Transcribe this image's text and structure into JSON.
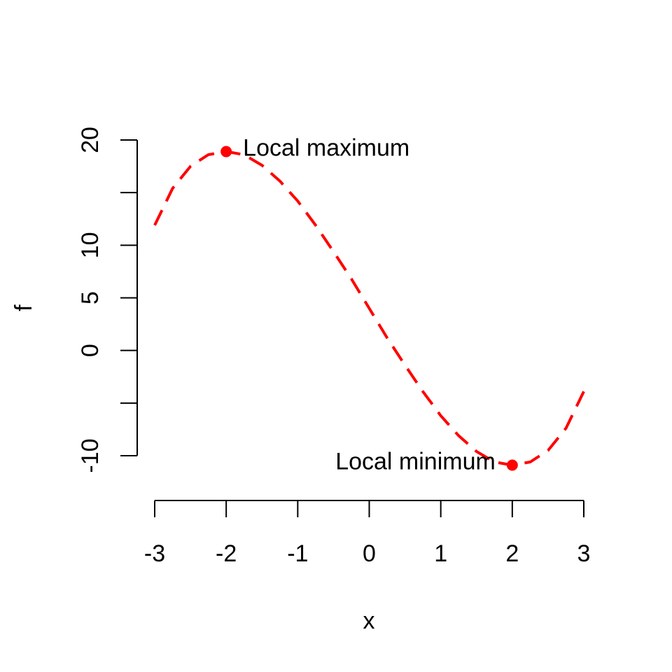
{
  "chart_data": {
    "type": "line",
    "title": "",
    "xlabel": "x",
    "ylabel": "f",
    "xlim": [
      -3,
      3
    ],
    "ylim": [
      -10,
      20
    ],
    "x_ticks": [
      -3,
      -2,
      -1,
      0,
      1,
      2,
      3
    ],
    "x_tick_labels": [
      "-3",
      "-2",
      "-1",
      "0",
      "1",
      "2",
      "3"
    ],
    "y_ticks": [
      -10,
      -5,
      0,
      5,
      10,
      15,
      20
    ],
    "y_tick_labels": [
      "-10",
      "",
      "0",
      "5",
      "10",
      "",
      "20"
    ],
    "grid": false,
    "series": [
      {
        "color": "#ff0000",
        "line_style": "dashed",
        "x": [
          -3.0,
          -2.75,
          -2.5,
          -2.25,
          -2.0,
          -1.75,
          -1.5,
          -1.25,
          -1.0,
          -0.75,
          -0.5,
          -0.25,
          0.0,
          0.25,
          0.5,
          0.75,
          1.0,
          1.25,
          1.5,
          1.75,
          2.0,
          2.25,
          2.5,
          2.75,
          3.0
        ],
        "y": [
          11.9,
          15.4,
          17.5,
          18.6,
          18.9,
          18.6,
          17.6,
          16.1,
          14.2,
          11.9,
          9.4,
          6.8,
          4.0,
          1.2,
          -1.4,
          -3.9,
          -6.2,
          -8.1,
          -9.6,
          -10.6,
          -10.9,
          -10.6,
          -9.5,
          -7.4,
          -3.9
        ]
      }
    ],
    "points": [
      {
        "x": -2,
        "y": 18.9,
        "color": "#ff0000",
        "label": "Local maximum",
        "label_side": "right"
      },
      {
        "x": 2,
        "y": -10.9,
        "color": "#ff0000",
        "label": "Local minimum",
        "label_side": "left"
      }
    ]
  }
}
